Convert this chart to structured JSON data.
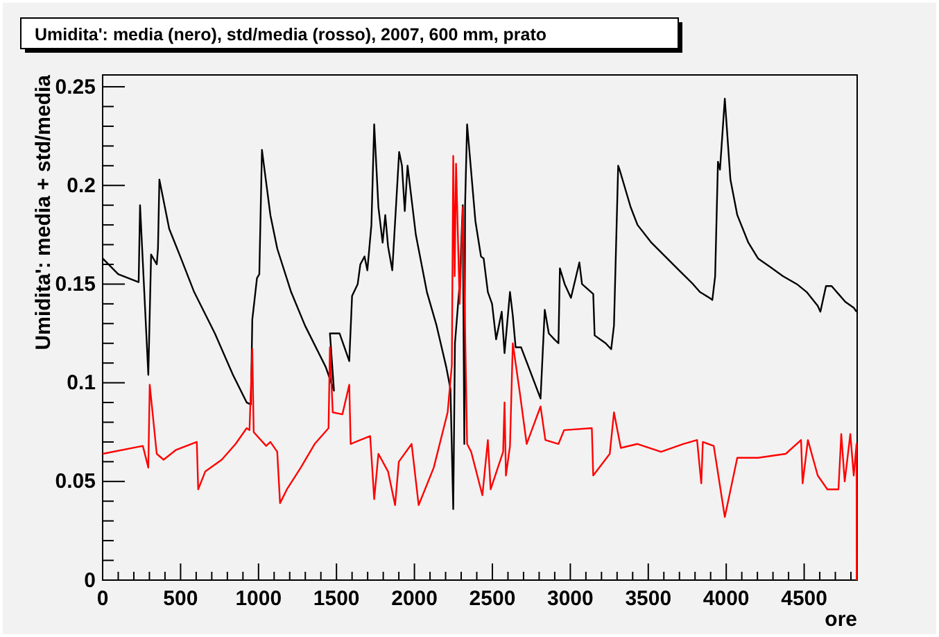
{
  "chart_data": {
    "type": "line",
    "title": "Umidita': media (nero), std/media (rosso), 2007, 600 mm, prato",
    "xlabel": "ore",
    "ylabel": "Umidita': media + std/media",
    "xlim": [
      0,
      4840
    ],
    "ylim": [
      0,
      0.256
    ],
    "xticks": [
      0,
      {
        "value": 100,
        "label": null
      },
      {
        "value": 200,
        "label": null
      },
      {
        "value": 300,
        "label": null
      },
      {
        "value": 400,
        "label": null
      },
      500,
      {
        "value": 600,
        "label": null
      },
      {
        "value": 700,
        "label": null
      },
      {
        "value": 800,
        "label": null
      },
      {
        "value": 900,
        "label": null
      },
      1000,
      {
        "value": 1100,
        "label": null
      },
      {
        "value": 1200,
        "label": null
      },
      {
        "value": 1300,
        "label": null
      },
      {
        "value": 1400,
        "label": null
      },
      1500,
      {
        "value": 1600,
        "label": null
      },
      {
        "value": 1700,
        "label": null
      },
      {
        "value": 1800,
        "label": null
      },
      {
        "value": 1900,
        "label": null
      },
      2000,
      {
        "value": 2100,
        "label": null
      },
      {
        "value": 2200,
        "label": null
      },
      {
        "value": 2300,
        "label": null
      },
      {
        "value": 2400,
        "label": null
      },
      2500,
      {
        "value": 2600,
        "label": null
      },
      {
        "value": 2700,
        "label": null
      },
      {
        "value": 2800,
        "label": null
      },
      {
        "value": 2900,
        "label": null
      },
      3000,
      {
        "value": 3100,
        "label": null
      },
      {
        "value": 3200,
        "label": null
      },
      {
        "value": 3300,
        "label": null
      },
      {
        "value": 3400,
        "label": null
      },
      3500,
      {
        "value": 3600,
        "label": null
      },
      {
        "value": 3700,
        "label": null
      },
      {
        "value": 3800,
        "label": null
      },
      {
        "value": 3900,
        "label": null
      },
      4000,
      {
        "value": 4100,
        "label": null
      },
      {
        "value": 4200,
        "label": null
      },
      {
        "value": 4300,
        "label": null
      },
      {
        "value": 4400,
        "label": null
      },
      4500,
      {
        "value": 4600,
        "label": null
      },
      {
        "value": 4700,
        "label": null
      },
      {
        "value": 4800,
        "label": null
      }
    ],
    "yticks": [
      0,
      {
        "value": 0.01,
        "label": null
      },
      {
        "value": 0.02,
        "label": null
      },
      {
        "value": 0.03,
        "label": null
      },
      {
        "value": 0.04,
        "label": null
      },
      0.05,
      {
        "value": 0.06,
        "label": null
      },
      {
        "value": 0.07,
        "label": null
      },
      {
        "value": 0.08,
        "label": null
      },
      {
        "value": 0.09,
        "label": null
      },
      0.1,
      {
        "value": 0.11,
        "label": null
      },
      {
        "value": 0.12,
        "label": null
      },
      {
        "value": 0.13,
        "label": null
      },
      {
        "value": 0.14,
        "label": null
      },
      0.15,
      {
        "value": 0.16,
        "label": null
      },
      {
        "value": 0.17,
        "label": null
      },
      {
        "value": 0.18,
        "label": null
      },
      {
        "value": 0.19,
        "label": null
      },
      0.2,
      {
        "value": 0.21,
        "label": null
      },
      {
        "value": 0.22,
        "label": null
      },
      {
        "value": 0.23,
        "label": null
      },
      {
        "value": 0.24,
        "label": null
      },
      0.25
    ],
    "marker": "none",
    "line_style": "solid",
    "series": [
      {
        "color": "#000000",
        "x": [
          0,
          100,
          231,
          240,
          293,
          311,
          347,
          355,
          364,
          427,
          498,
          587,
          720,
          836,
          924,
          951,
          960,
          990,
          1005,
          1022,
          1058,
          1076,
          1120,
          1209,
          1298,
          1431,
          1484,
          1458,
          1520,
          1582,
          1600,
          1636,
          1653,
          1680,
          1698,
          1724,
          1742,
          1769,
          1796,
          1813,
          1831,
          1858,
          1902,
          1920,
          1938,
          1956,
          2009,
          2080,
          2142,
          2204,
          2231,
          2249,
          2260,
          2290,
          2310,
          2320,
          2325,
          2338,
          2391,
          2427,
          2444,
          2471,
          2498,
          2524,
          2560,
          2578,
          2613,
          2631,
          2649,
          2684,
          2809,
          2836,
          2862,
          2898,
          2924,
          2933,
          2964,
          3004,
          3058,
          3075,
          3147,
          3156,
          3227,
          3262,
          3280,
          3307,
          3316,
          3387,
          3431,
          3520,
          3609,
          3698,
          3787,
          3831,
          3893,
          3911,
          3929,
          3947,
          3960,
          3991,
          4027,
          4071,
          4142,
          4204,
          4276,
          4364,
          4453,
          4516,
          4587,
          4604,
          4640,
          4676,
          4720,
          4764,
          4818,
          4836
        ],
        "values": [
          0.163,
          0.155,
          0.151,
          0.19,
          0.104,
          0.165,
          0.16,
          0.168,
          0.203,
          0.178,
          0.164,
          0.146,
          0.125,
          0.104,
          0.09,
          0.089,
          0.132,
          0.153,
          0.155,
          0.218,
          0.196,
          0.185,
          0.168,
          0.146,
          0.129,
          0.108,
          0.096,
          0.125,
          0.125,
          0.111,
          0.144,
          0.15,
          0.16,
          0.164,
          0.157,
          0.18,
          0.231,
          0.189,
          0.171,
          0.185,
          0.169,
          0.157,
          0.217,
          0.21,
          0.187,
          0.21,
          0.175,
          0.146,
          0.129,
          0.108,
          0.097,
          0.036,
          0.12,
          0.15,
          0.19,
          0.069,
          0.19,
          0.231,
          0.182,
          0.164,
          0.163,
          0.146,
          0.14,
          0.122,
          0.136,
          0.115,
          0.146,
          0.134,
          0.118,
          0.118,
          0.092,
          0.137,
          0.125,
          0.122,
          0.12,
          0.158,
          0.15,
          0.143,
          0.161,
          0.15,
          0.145,
          0.124,
          0.12,
          0.117,
          0.129,
          0.21,
          0.208,
          0.189,
          0.18,
          0.171,
          0.164,
          0.157,
          0.15,
          0.146,
          0.143,
          0.142,
          0.154,
          0.212,
          0.208,
          0.244,
          0.203,
          0.185,
          0.171,
          0.163,
          0.159,
          0.154,
          0.15,
          0.146,
          0.139,
          0.136,
          0.149,
          0.149,
          0.145,
          0.141,
          0.138,
          0.136
        ]
      },
      {
        "color": "#ff0000",
        "x": [
          0,
          258,
          293,
          302,
          347,
          391,
          471,
          604,
          613,
          658,
          764,
          853,
          924,
          942,
          960,
          969,
          1049,
          1076,
          1120,
          1138,
          1182,
          1271,
          1360,
          1449,
          1458,
          1476,
          1538,
          1582,
          1591,
          1716,
          1742,
          1769,
          1831,
          1876,
          1900,
          1982,
          2027,
          2124,
          2213,
          2240,
          2249,
          2258,
          2267,
          2290,
          2311,
          2338,
          2364,
          2436,
          2471,
          2489,
          2569,
          2578,
          2587,
          2613,
          2631,
          2676,
          2720,
          2809,
          2840,
          2924,
          2960,
          3138,
          3147,
          3253,
          3280,
          3324,
          3431,
          3582,
          3724,
          3813,
          3840,
          3850,
          3920,
          3991,
          4071,
          4204,
          4382,
          4480,
          4490,
          4524,
          4587,
          4649,
          4720,
          4738,
          4760,
          4796,
          4818,
          4836,
          4837
        ],
        "values": [
          0.064,
          0.068,
          0.057,
          0.099,
          0.064,
          0.061,
          0.066,
          0.07,
          0.046,
          0.055,
          0.061,
          0.069,
          0.077,
          0.076,
          0.117,
          0.075,
          0.068,
          0.07,
          0.065,
          0.039,
          0.046,
          0.057,
          0.069,
          0.077,
          0.118,
          0.085,
          0.084,
          0.099,
          0.069,
          0.073,
          0.041,
          0.064,
          0.055,
          0.038,
          0.06,
          0.069,
          0.038,
          0.057,
          0.085,
          0.109,
          0.215,
          0.154,
          0.211,
          0.14,
          0.189,
          0.069,
          0.065,
          0.043,
          0.071,
          0.046,
          0.065,
          0.09,
          0.053,
          0.068,
          0.12,
          0.095,
          0.069,
          0.088,
          0.071,
          0.069,
          0.076,
          0.077,
          0.053,
          0.064,
          0.085,
          0.067,
          0.069,
          0.065,
          0.069,
          0.071,
          0.049,
          0.07,
          0.068,
          0.032,
          0.062,
          0.062,
          0.064,
          0.071,
          0.049,
          0.071,
          0.053,
          0.046,
          0.046,
          0.074,
          0.05,
          0.074,
          0.053,
          0.069,
          0
        ]
      }
    ]
  }
}
